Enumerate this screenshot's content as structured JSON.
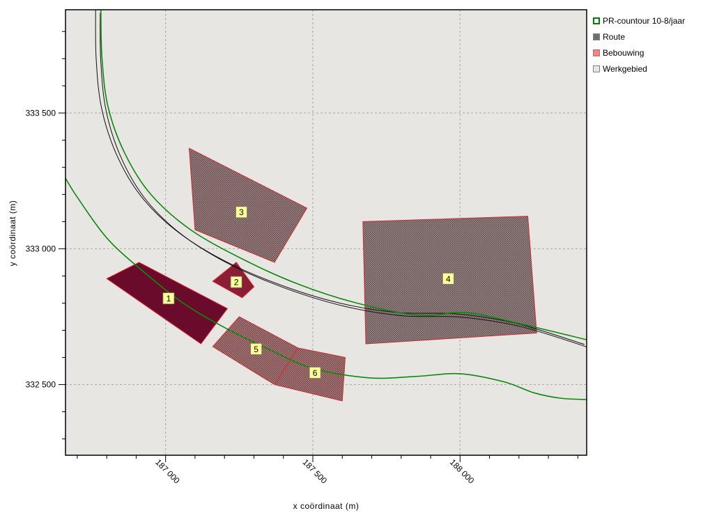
{
  "chart_data": {
    "type": "map",
    "xlabel": "x coördinaat (m)",
    "ylabel": "y coördinaat (m)",
    "xlim": [
      186660,
      188430
    ],
    "ylim": [
      332240,
      333880
    ],
    "x_ticks": [
      {
        "value": 187000,
        "label": "187 000"
      },
      {
        "value": 187500,
        "label": "187 500"
      },
      {
        "value": 188000,
        "label": "188 000"
      }
    ],
    "y_ticks": [
      {
        "value": 332500,
        "label": "332 500"
      },
      {
        "value": 333000,
        "label": "333 000"
      },
      {
        "value": 333500,
        "label": "333 500"
      }
    ],
    "minor_x_step": 100,
    "minor_y_step": 100,
    "grid": true,
    "legend_position": "right-top",
    "legend": [
      {
        "label": "PR-countour 10-8/jaar",
        "kind": "outline",
        "color": "#008000"
      },
      {
        "label": "Route",
        "kind": "fill",
        "color": "#707070"
      },
      {
        "label": "Bebouwing",
        "kind": "fill",
        "color": "#ff8080"
      },
      {
        "label": "Werkgebied",
        "kind": "fill",
        "color": "#e8e6e3"
      }
    ],
    "route": [
      [
        186770,
        333880
      ],
      [
        186772,
        333700
      ],
      [
        186790,
        333520
      ],
      [
        186840,
        333350
      ],
      [
        186920,
        333200
      ],
      [
        187040,
        333070
      ],
      [
        187200,
        332960
      ],
      [
        187390,
        332870
      ],
      [
        187600,
        332800
      ],
      [
        187800,
        332765
      ],
      [
        188000,
        332760
      ],
      [
        188200,
        332725
      ],
      [
        188430,
        332648
      ]
    ],
    "route_offset": 0.012,
    "contour_inner": [
      [
        186780,
        333880
      ],
      [
        186784,
        333700
      ],
      [
        186805,
        333520
      ],
      [
        186862,
        333350
      ],
      [
        186950,
        333200
      ],
      [
        187085,
        333070
      ],
      [
        187265,
        332960
      ],
      [
        187450,
        332870
      ],
      [
        187650,
        332800
      ],
      [
        187860,
        332755
      ],
      [
        188020,
        332765
      ],
      [
        188200,
        332725
      ],
      [
        188430,
        332665
      ]
    ],
    "contour_outer": [
      [
        186660,
        333260
      ],
      [
        186700,
        333190
      ],
      [
        186800,
        333040
      ],
      [
        186920,
        332920
      ],
      [
        187060,
        332800
      ],
      [
        187200,
        332710
      ],
      [
        187350,
        332630
      ],
      [
        187500,
        332560
      ],
      [
        187690,
        332525
      ],
      [
        187850,
        332530
      ],
      [
        188000,
        332540
      ],
      [
        188150,
        332510
      ],
      [
        188250,
        332470
      ],
      [
        188340,
        332450
      ],
      [
        188430,
        332445
      ]
    ],
    "parcels": [
      {
        "id": "1",
        "label": "1",
        "color": "#6b0b2c",
        "style": "solid",
        "points": [
          [
            186800,
            332890
          ],
          [
            186910,
            332950
          ],
          [
            187210,
            332780
          ],
          [
            187120,
            332650
          ]
        ]
      },
      {
        "id": "2",
        "label": "2",
        "color": "#8a1e36",
        "style": "solid",
        "points": [
          [
            187160,
            332880
          ],
          [
            187240,
            332950
          ],
          [
            187300,
            332860
          ],
          [
            187260,
            332820
          ]
        ]
      },
      {
        "id": "3",
        "label": "3",
        "color": "#8a6b6b",
        "style": "hatched",
        "points": [
          [
            187080,
            333370
          ],
          [
            187100,
            333070
          ],
          [
            187370,
            332950
          ],
          [
            187480,
            333150
          ]
        ]
      },
      {
        "id": "4",
        "label": "4",
        "color": "#867070",
        "style": "hatched",
        "points": [
          [
            187670,
            333100
          ],
          [
            188230,
            333120
          ],
          [
            188260,
            332690
          ],
          [
            187680,
            332650
          ]
        ]
      },
      {
        "id": "5",
        "label": "5",
        "color": "#a06060",
        "style": "hatched",
        "points": [
          [
            187160,
            332640
          ],
          [
            187370,
            332500
          ],
          [
            187450,
            332635
          ],
          [
            187250,
            332750
          ]
        ]
      },
      {
        "id": "6",
        "label": "6",
        "color": "#a06060",
        "style": "hatched",
        "points": [
          [
            187370,
            332500
          ],
          [
            187600,
            332440
          ],
          [
            187610,
            332600
          ],
          [
            187450,
            332635
          ]
        ]
      }
    ]
  }
}
